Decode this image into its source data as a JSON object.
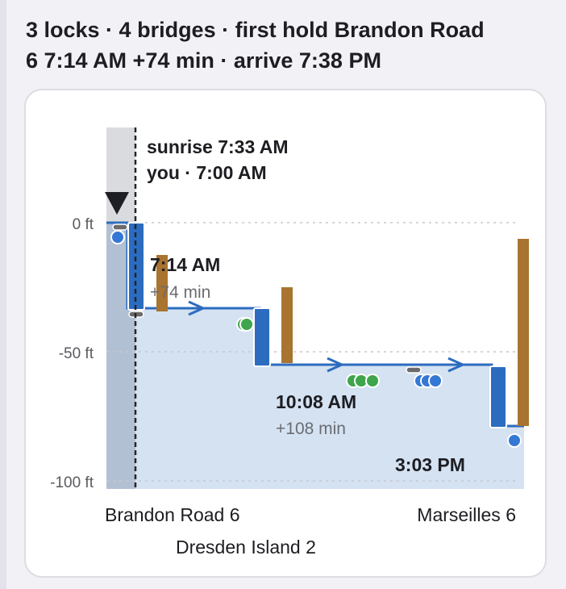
{
  "summary": {
    "line1": "3 locks · 4 bridges · first hold Brandon Road",
    "line2": "6 7:14 AM +74 min · arrive 7:38 PM"
  },
  "chart": {
    "now_labels": {
      "sunrise": "sunrise 7:33 AM",
      "you": "you · 7:00 AM"
    },
    "y_ticks": [
      "0 ft",
      "-50 ft",
      "-100 ft"
    ],
    "holds": [
      {
        "time": "7:14 AM",
        "delay": "+74 min"
      },
      {
        "time": "10:08 AM",
        "delay": "+108 min"
      },
      {
        "time": "3:03 PM",
        "delay": ""
      }
    ],
    "x_labels": [
      "Brandon Road 6",
      "Dresden Island 2",
      "Marseilles 6"
    ],
    "colors": {
      "route": "#2c6cbf",
      "lock": "#2c6cbf",
      "bridge": "#a8742f",
      "water": "#d4e2f2",
      "past": "#b2c0d3",
      "green_marker": "#3ea54c",
      "blue_marker": "#3577d4",
      "gray_marker": "#6b6b6b"
    }
  }
}
